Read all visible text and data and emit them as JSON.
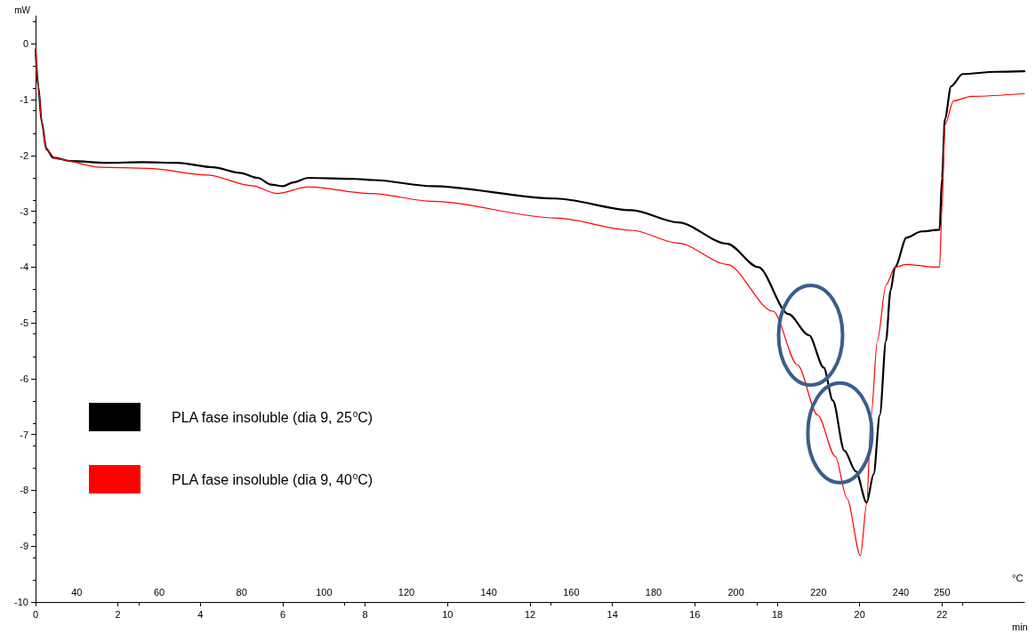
{
  "chart_data": {
    "type": "line",
    "ylabel": "mW",
    "xlabel": "min",
    "x2label": "°C",
    "xlim": [
      0,
      24
    ],
    "xticks": [
      0,
      2,
      4,
      6,
      8,
      10,
      12,
      14,
      16,
      18,
      20,
      22
    ],
    "x2lim": [
      30,
      270
    ],
    "x2ticks": [
      40,
      60,
      80,
      100,
      120,
      140,
      160,
      180,
      200,
      220,
      240,
      250
    ],
    "ylim": [
      -10,
      0.5
    ],
    "yticks": [
      -10,
      -9,
      -8,
      -7,
      -6,
      -5,
      -4,
      -3,
      -2,
      -1,
      0
    ],
    "grid": false,
    "legend": "left",
    "marker": "none",
    "line_style": "solid",
    "series": [
      {
        "name": "PLA fase insoluble (dia 9, 25$^{o}$C)",
        "color": "#000000",
        "x": [
          0,
          0.065,
          0.15,
          0.26,
          0.43,
          0.86,
          1.73,
          2.59,
          3.45,
          4.31,
          4.96,
          5.39,
          5.72,
          6.0,
          6.26,
          6.62,
          7.77,
          8.2,
          9.64,
          12.62,
          14.47,
          15.6,
          16.78,
          17.54,
          18.27,
          18.77,
          19.13,
          19.35,
          19.63,
          19.91,
          20.17,
          20.34,
          20.49,
          20.64,
          20.75,
          20.86,
          21.14,
          21.5,
          21.94,
          22.0,
          22.07,
          22.22,
          22.5,
          23.3,
          24.0
        ],
        "values": [
          -0.1,
          -0.76,
          -1.4,
          -1.88,
          -2.04,
          -2.1,
          -2.13,
          -2.12,
          -2.13,
          -2.21,
          -2.31,
          -2.4,
          -2.52,
          -2.55,
          -2.48,
          -2.4,
          -2.42,
          -2.44,
          -2.55,
          -2.77,
          -2.98,
          -3.2,
          -3.58,
          -4.0,
          -4.84,
          -5.22,
          -5.8,
          -6.39,
          -7.29,
          -7.66,
          -8.22,
          -7.71,
          -6.65,
          -5.32,
          -4.42,
          -4.0,
          -3.47,
          -3.36,
          -3.33,
          -2.4,
          -1.34,
          -0.76,
          -0.54,
          -0.5,
          -0.49
        ]
      },
      {
        "name": "PLA fase insoluble (dia 9, 40$^{o}$C)",
        "color": "#ff0000",
        "x": [
          0,
          0.065,
          0.15,
          0.26,
          0.5,
          1.58,
          2.73,
          4.17,
          5.25,
          5.86,
          6.62,
          8.13,
          9.64,
          12.62,
          14.47,
          15.6,
          16.78,
          17.9,
          18.49,
          18.98,
          19.41,
          19.69,
          20.02,
          20.17,
          20.28,
          20.43,
          20.64,
          20.86,
          21.14,
          21.85,
          21.94,
          22.0,
          22.07,
          22.28,
          22.71,
          24.0
        ],
        "values": [
          -0.1,
          -0.76,
          -1.4,
          -1.9,
          -2.06,
          -2.21,
          -2.23,
          -2.35,
          -2.54,
          -2.68,
          -2.56,
          -2.68,
          -2.82,
          -3.12,
          -3.34,
          -3.57,
          -3.95,
          -4.79,
          -5.75,
          -6.65,
          -7.39,
          -8.14,
          -9.17,
          -8.25,
          -6.65,
          -5.32,
          -4.32,
          -4.0,
          -3.95,
          -4.0,
          -4.0,
          -2.93,
          -1.45,
          -1.02,
          -0.94,
          -0.89
        ]
      }
    ]
  }
}
